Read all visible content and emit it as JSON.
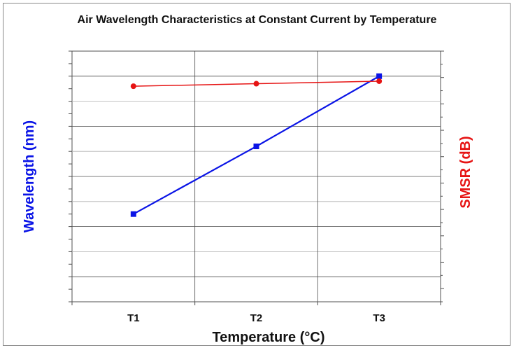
{
  "colors": {
    "wavelength": "#0a14e6",
    "smsr": "#e61414",
    "grid": "#b0b0b0",
    "axis": "#505050",
    "text": "#111111"
  },
  "chart_data": {
    "type": "line",
    "title": "Air Wavelength Characteristics at Constant Current by Temperature",
    "xlabel": "Temperature (°C)",
    "ylabel_left": "Wavelength (nm)",
    "ylabel_right": "SMSR (dB)",
    "categories": [
      "T1",
      "T2",
      "T3"
    ],
    "ylim_left": [
      0,
      10
    ],
    "ylim_right": [
      0,
      10
    ],
    "grid": true,
    "legend": "none",
    "series": [
      {
        "name": "",
        "axis": "left",
        "color": "#0a14e6",
        "marker": "square",
        "values": [
          3.5,
          6.2,
          9.0
        ]
      },
      {
        "name": "",
        "axis": "right",
        "color": "#e61414",
        "marker": "circle",
        "values": [
          8.6,
          8.7,
          8.8
        ]
      }
    ]
  }
}
